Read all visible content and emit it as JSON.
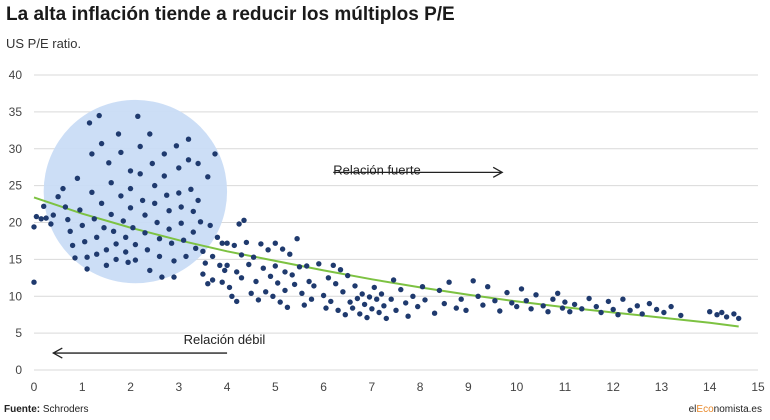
{
  "header": {
    "title": "La alta inflación tiende a reducir los múltiplos P/E",
    "subtitle": "US P/E ratio."
  },
  "footer": {
    "source_label": "Fuente:",
    "source_value": "Schroders",
    "brand_prefix": "el",
    "brand_accent": "Eco",
    "brand_suffix": "nomista.es"
  },
  "chart_data": {
    "type": "scatter",
    "title": "La alta inflación tiende a reducir los múltiplos P/E",
    "subtitle": "US P/E ratio.",
    "xlabel": "",
    "ylabel": "",
    "xlim": [
      0,
      15
    ],
    "ylim": [
      0,
      40
    ],
    "x_ticks": [
      0,
      1,
      2,
      3,
      4,
      5,
      6,
      7,
      8,
      9,
      10,
      11,
      12,
      13,
      14,
      15
    ],
    "y_ticks": [
      0,
      5,
      10,
      15,
      20,
      25,
      30,
      35,
      40
    ],
    "grid": "horizontal",
    "colors": {
      "points": "#1f3a6e",
      "trend": "#7dc242",
      "highlight": "#c9dcf5",
      "grid": "#d9d9d9",
      "arrow": "#222222"
    },
    "highlight_circle": {
      "cx": 2.1,
      "cy": 24.2,
      "r": 1.9
    },
    "annotations": [
      {
        "text": "Relación fuerte",
        "x": 6.2,
        "y": 26.5,
        "arrow": "right",
        "arrow_from": 6.2,
        "arrow_to": 9.7,
        "arrow_y": 26.8
      },
      {
        "text": "Relación débil",
        "x": 3.1,
        "y": 3.5,
        "arrow": "left",
        "arrow_from": 4.0,
        "arrow_to": 0.4,
        "arrow_y": 2.3
      }
    ],
    "trend": [
      [
        0,
        23.4
      ],
      [
        1,
        21.2
      ],
      [
        2,
        19.3
      ],
      [
        3,
        17.6
      ],
      [
        4,
        16.1
      ],
      [
        5,
        14.8
      ],
      [
        6,
        13.5
      ],
      [
        7,
        12.3
      ],
      [
        8,
        11.2
      ],
      [
        9,
        10.2
      ],
      [
        10,
        9.3
      ],
      [
        11,
        8.5
      ],
      [
        12,
        7.8
      ],
      [
        13,
        7.1
      ],
      [
        14,
        6.4
      ],
      [
        14.6,
        5.9
      ]
    ],
    "points": [
      [
        0.0,
        11.9
      ],
      [
        0.0,
        19.4
      ],
      [
        0.05,
        20.8
      ],
      [
        0.15,
        20.5
      ],
      [
        0.25,
        20.6
      ],
      [
        0.2,
        22.2
      ],
      [
        0.35,
        19.8
      ],
      [
        0.4,
        21.0
      ],
      [
        0.5,
        23.5
      ],
      [
        0.6,
        24.6
      ],
      [
        0.65,
        22.1
      ],
      [
        0.7,
        20.4
      ],
      [
        0.75,
        18.8
      ],
      [
        0.8,
        16.9
      ],
      [
        0.85,
        15.2
      ],
      [
        0.9,
        26.0
      ],
      [
        0.95,
        21.7
      ],
      [
        1.0,
        19.6
      ],
      [
        1.05,
        17.4
      ],
      [
        1.1,
        15.3
      ],
      [
        1.1,
        13.7
      ],
      [
        1.15,
        33.5
      ],
      [
        1.2,
        29.3
      ],
      [
        1.2,
        24.1
      ],
      [
        1.25,
        20.5
      ],
      [
        1.3,
        18.0
      ],
      [
        1.3,
        15.7
      ],
      [
        1.35,
        34.5
      ],
      [
        1.4,
        30.7
      ],
      [
        1.4,
        22.6
      ],
      [
        1.45,
        19.3
      ],
      [
        1.5,
        16.3
      ],
      [
        1.5,
        14.2
      ],
      [
        1.55,
        28.1
      ],
      [
        1.6,
        25.4
      ],
      [
        1.6,
        21.1
      ],
      [
        1.65,
        18.8
      ],
      [
        1.7,
        17.1
      ],
      [
        1.7,
        15.0
      ],
      [
        1.75,
        32.0
      ],
      [
        1.8,
        29.5
      ],
      [
        1.8,
        23.6
      ],
      [
        1.85,
        20.2
      ],
      [
        1.9,
        18.0
      ],
      [
        1.9,
        16.0
      ],
      [
        1.95,
        14.6
      ],
      [
        2.0,
        27.0
      ],
      [
        2.0,
        24.6
      ],
      [
        2.0,
        22.0
      ],
      [
        2.05,
        19.3
      ],
      [
        2.1,
        17.0
      ],
      [
        2.1,
        14.9
      ],
      [
        2.15,
        34.4
      ],
      [
        2.2,
        30.3
      ],
      [
        2.2,
        26.6
      ],
      [
        2.25,
        23.0
      ],
      [
        2.3,
        21.0
      ],
      [
        2.3,
        18.6
      ],
      [
        2.35,
        16.3
      ],
      [
        2.4,
        13.5
      ],
      [
        2.4,
        32.0
      ],
      [
        2.45,
        28.0
      ],
      [
        2.5,
        25.0
      ],
      [
        2.5,
        22.6
      ],
      [
        2.55,
        20.0
      ],
      [
        2.6,
        17.8
      ],
      [
        2.6,
        15.4
      ],
      [
        2.65,
        12.6
      ],
      [
        2.7,
        29.3
      ],
      [
        2.7,
        26.3
      ],
      [
        2.75,
        23.7
      ],
      [
        2.8,
        21.6
      ],
      [
        2.8,
        19.1
      ],
      [
        2.85,
        17.2
      ],
      [
        2.9,
        14.8
      ],
      [
        2.9,
        12.6
      ],
      [
        2.95,
        30.4
      ],
      [
        3.0,
        27.4
      ],
      [
        3.0,
        24.0
      ],
      [
        3.05,
        22.1
      ],
      [
        3.05,
        19.9
      ],
      [
        3.1,
        17.6
      ],
      [
        3.15,
        15.4
      ],
      [
        3.2,
        31.3
      ],
      [
        3.2,
        28.5
      ],
      [
        3.25,
        24.5
      ],
      [
        3.3,
        21.5
      ],
      [
        3.3,
        18.7
      ],
      [
        3.35,
        16.5
      ],
      [
        3.4,
        28.0
      ],
      [
        3.4,
        23.0
      ],
      [
        3.45,
        20.1
      ],
      [
        3.5,
        16.1
      ],
      [
        3.5,
        13.0
      ],
      [
        3.55,
        14.5
      ],
      [
        3.6,
        11.7
      ],
      [
        3.6,
        26.2
      ],
      [
        3.65,
        19.6
      ],
      [
        3.7,
        15.4
      ],
      [
        3.7,
        12.2
      ],
      [
        3.75,
        29.3
      ],
      [
        3.8,
        18.0
      ],
      [
        3.85,
        14.2
      ],
      [
        3.9,
        11.9
      ],
      [
        3.9,
        17.2
      ],
      [
        3.95,
        13.5
      ],
      [
        4.0,
        17.2
      ],
      [
        4.0,
        14.2
      ],
      [
        4.05,
        11.2
      ],
      [
        4.1,
        10.0
      ],
      [
        4.15,
        16.9
      ],
      [
        4.2,
        13.3
      ],
      [
        4.2,
        9.3
      ],
      [
        4.25,
        19.8
      ],
      [
        4.3,
        15.6
      ],
      [
        4.3,
        12.5
      ],
      [
        4.35,
        20.3
      ],
      [
        4.4,
        17.3
      ],
      [
        4.45,
        14.3
      ],
      [
        4.5,
        10.4
      ],
      [
        4.55,
        15.3
      ],
      [
        4.6,
        12.0
      ],
      [
        4.65,
        9.5
      ],
      [
        4.7,
        17.1
      ],
      [
        4.75,
        13.8
      ],
      [
        4.8,
        10.6
      ],
      [
        4.85,
        16.3
      ],
      [
        4.9,
        12.7
      ],
      [
        4.95,
        10.0
      ],
      [
        5.0,
        17.2
      ],
      [
        5.0,
        14.1
      ],
      [
        5.05,
        11.8
      ],
      [
        5.1,
        9.2
      ],
      [
        5.15,
        16.4
      ],
      [
        5.2,
        13.3
      ],
      [
        5.2,
        10.8
      ],
      [
        5.25,
        8.5
      ],
      [
        5.3,
        15.7
      ],
      [
        5.35,
        12.9
      ],
      [
        5.4,
        11.6
      ],
      [
        5.45,
        17.8
      ],
      [
        5.5,
        14.0
      ],
      [
        5.55,
        10.4
      ],
      [
        5.6,
        8.8
      ],
      [
        5.65,
        14.1
      ],
      [
        5.7,
        12.0
      ],
      [
        5.75,
        9.6
      ],
      [
        5.8,
        11.4
      ],
      [
        5.9,
        14.4
      ],
      [
        6.0,
        10.1
      ],
      [
        6.05,
        8.4
      ],
      [
        6.1,
        12.5
      ],
      [
        6.15,
        9.3
      ],
      [
        6.2,
        14.2
      ],
      [
        6.25,
        11.7
      ],
      [
        6.3,
        8.1
      ],
      [
        6.35,
        13.6
      ],
      [
        6.4,
        10.6
      ],
      [
        6.45,
        7.5
      ],
      [
        6.5,
        12.8
      ],
      [
        6.55,
        9.2
      ],
      [
        6.6,
        8.4
      ],
      [
        6.65,
        11.4
      ],
      [
        6.7,
        9.7
      ],
      [
        6.75,
        7.6
      ],
      [
        6.8,
        10.3
      ],
      [
        6.85,
        8.9
      ],
      [
        6.9,
        7.1
      ],
      [
        6.95,
        9.9
      ],
      [
        7.0,
        8.3
      ],
      [
        7.05,
        11.2
      ],
      [
        7.1,
        9.6
      ],
      [
        7.15,
        7.8
      ],
      [
        7.2,
        10.3
      ],
      [
        7.25,
        8.7
      ],
      [
        7.3,
        7.0
      ],
      [
        7.4,
        9.6
      ],
      [
        7.45,
        12.2
      ],
      [
        7.5,
        8.1
      ],
      [
        7.6,
        10.9
      ],
      [
        7.7,
        9.1
      ],
      [
        7.75,
        7.3
      ],
      [
        7.85,
        10.0
      ],
      [
        7.95,
        8.6
      ],
      [
        8.05,
        11.3
      ],
      [
        8.1,
        9.5
      ],
      [
        8.3,
        7.7
      ],
      [
        8.4,
        10.8
      ],
      [
        8.5,
        9.0
      ],
      [
        8.6,
        11.9
      ],
      [
        8.75,
        8.4
      ],
      [
        8.85,
        9.6
      ],
      [
        8.95,
        8.1
      ],
      [
        9.1,
        12.1
      ],
      [
        9.2,
        10.0
      ],
      [
        9.3,
        8.8
      ],
      [
        9.4,
        11.3
      ],
      [
        9.55,
        9.4
      ],
      [
        9.65,
        8.0
      ],
      [
        9.8,
        10.5
      ],
      [
        9.9,
        9.1
      ],
      [
        10.0,
        8.6
      ],
      [
        10.1,
        11.0
      ],
      [
        10.2,
        9.4
      ],
      [
        10.3,
        8.3
      ],
      [
        10.4,
        10.2
      ],
      [
        10.55,
        8.7
      ],
      [
        10.65,
        7.9
      ],
      [
        10.75,
        9.6
      ],
      [
        10.85,
        10.4
      ],
      [
        10.95,
        8.4
      ],
      [
        11.0,
        9.2
      ],
      [
        11.1,
        7.9
      ],
      [
        11.2,
        8.9
      ],
      [
        11.35,
        8.3
      ],
      [
        11.5,
        9.7
      ],
      [
        11.65,
        8.6
      ],
      [
        11.75,
        7.8
      ],
      [
        11.9,
        9.3
      ],
      [
        12.0,
        8.2
      ],
      [
        12.1,
        7.5
      ],
      [
        12.2,
        9.6
      ],
      [
        12.35,
        8.1
      ],
      [
        12.5,
        8.7
      ],
      [
        12.6,
        7.6
      ],
      [
        12.75,
        9.0
      ],
      [
        12.9,
        8.2
      ],
      [
        13.05,
        7.8
      ],
      [
        13.2,
        8.6
      ],
      [
        13.4,
        7.4
      ],
      [
        14.0,
        7.9
      ],
      [
        14.15,
        7.5
      ],
      [
        14.25,
        7.8
      ],
      [
        14.35,
        7.2
      ],
      [
        14.5,
        7.6
      ],
      [
        14.6,
        7.0
      ]
    ]
  }
}
